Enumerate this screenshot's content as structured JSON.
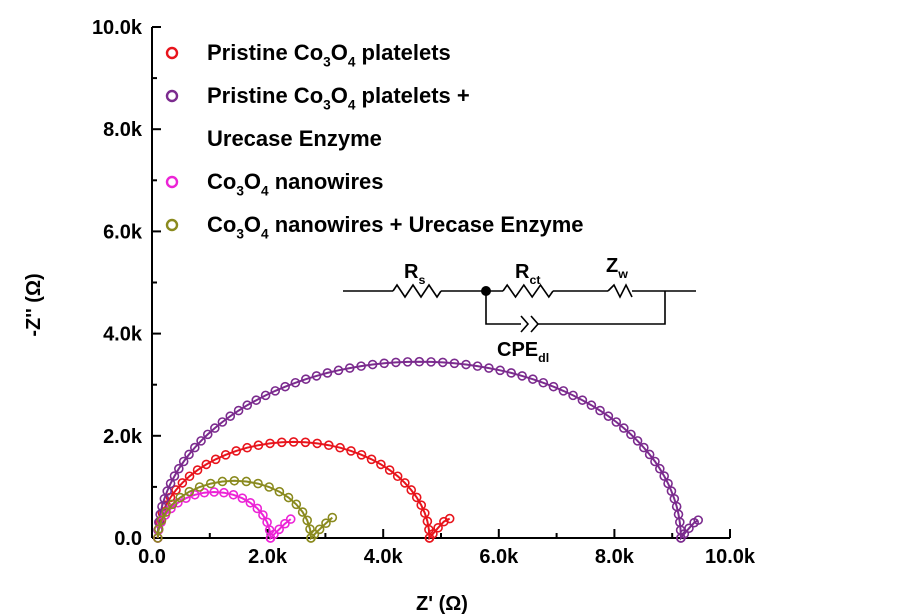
{
  "chart_data": {
    "type": "scatter",
    "title": "",
    "xlabel": "Z' (Ω)",
    "ylabel": "-Z'' (Ω)",
    "xlim": [
      0,
      10000
    ],
    "ylim": [
      0,
      10000
    ],
    "x_ticks": [
      0,
      2000,
      4000,
      6000,
      8000,
      10000
    ],
    "x_tick_labels": [
      "0.0",
      "2.0k",
      "4.0k",
      "6.0k",
      "8.0k",
      "10.0k"
    ],
    "y_ticks": [
      0,
      2000,
      4000,
      6000,
      8000,
      10000
    ],
    "y_tick_labels": [
      "0.0",
      "2.0k",
      "4.0k",
      "6.0k",
      "8.0k",
      "10.0k"
    ],
    "grid": false,
    "legend_position": "top-right",
    "series": [
      {
        "legend_lines": [
          [
            {
              "t": "Pristine Co"
            },
            {
              "t": "3",
              "sub": true
            },
            {
              "t": "O"
            },
            {
              "t": "4",
              "sub": true
            },
            {
              "t": " platelets"
            }
          ]
        ],
        "color": "#e8141c",
        "semicircle": {
          "start": 100,
          "end": 4800,
          "peak": 1880
        },
        "tail": [
          [
            4800,
            0
          ],
          [
            4860,
            80
          ],
          [
            4950,
            200
          ],
          [
            5050,
            320
          ],
          [
            5150,
            380
          ]
        ]
      },
      {
        "legend_lines": [
          [
            {
              "t": "Pristine Co"
            },
            {
              "t": "3",
              "sub": true
            },
            {
              "t": "O"
            },
            {
              "t": "4",
              "sub": true
            },
            {
              "t": " platelets +"
            }
          ],
          [
            {
              "t": "Urecase Enzyme"
            }
          ]
        ],
        "color": "#7b2b8e",
        "semicircle": {
          "start": 100,
          "end": 9150,
          "peak": 3450
        },
        "tail": [
          [
            9150,
            0
          ],
          [
            9210,
            80
          ],
          [
            9290,
            190
          ],
          [
            9380,
            300
          ],
          [
            9450,
            350
          ]
        ]
      },
      {
        "legend_lines": [
          [
            {
              "t": "Co"
            },
            {
              "t": "3",
              "sub": true
            },
            {
              "t": "O"
            },
            {
              "t": "4",
              "sub": true
            },
            {
              "t": " nanowires"
            }
          ]
        ],
        "color": "#ec24d6",
        "semicircle": {
          "start": 100,
          "end": 2050,
          "peak": 900
        },
        "tail": [
          [
            2050,
            0
          ],
          [
            2110,
            70
          ],
          [
            2200,
            170
          ],
          [
            2300,
            280
          ],
          [
            2400,
            370
          ]
        ]
      },
      {
        "legend_lines": [
          [
            {
              "t": "Co"
            },
            {
              "t": "3",
              "sub": true
            },
            {
              "t": "O"
            },
            {
              "t": "4",
              "sub": true
            },
            {
              "t": " nanowires + Urecase Enzyme"
            }
          ]
        ],
        "color": "#8a8a1e",
        "semicircle": {
          "start": 100,
          "end": 2750,
          "peak": 1120
        },
        "tail": [
          [
            2750,
            0
          ],
          [
            2810,
            70
          ],
          [
            2900,
            170
          ],
          [
            3010,
            290
          ],
          [
            3120,
            400
          ]
        ]
      }
    ],
    "circuit": {
      "labels": [
        [
          {
            "t": "R"
          },
          {
            "t": "s",
            "sub": true
          }
        ],
        [
          {
            "t": "R"
          },
          {
            "t": "ct",
            "sub": true
          }
        ],
        [
          {
            "t": "Z"
          },
          {
            "t": "w",
            "sub": true
          }
        ],
        [
          {
            "t": "CPE"
          },
          {
            "t": "dl",
            "sub": true
          }
        ]
      ]
    }
  }
}
